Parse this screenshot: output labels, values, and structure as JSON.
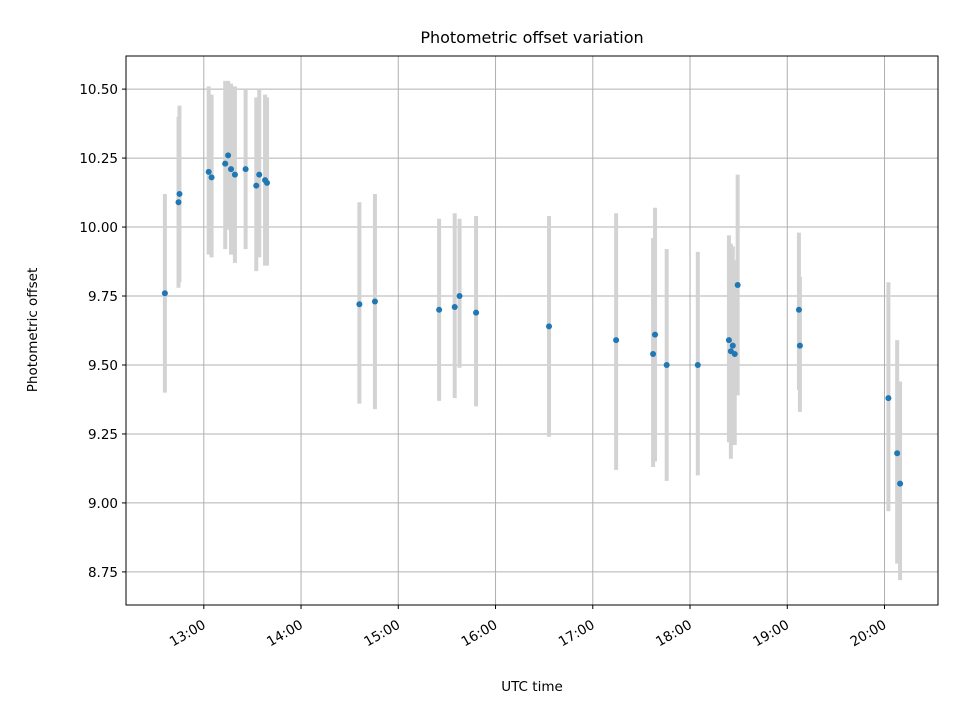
{
  "chart_data": {
    "type": "scatter",
    "title": "Photometric offset variation",
    "xlabel": "UTC time",
    "ylabel": "Photometric offset",
    "x_unit": "UTC time of day (hours)",
    "xlim": [
      12.2,
      20.55
    ],
    "ylim": [
      8.63,
      10.62
    ],
    "grid": true,
    "xticks": [
      {
        "value": 13,
        "label": "13:00"
      },
      {
        "value": 14,
        "label": "14:00"
      },
      {
        "value": 15,
        "label": "15:00"
      },
      {
        "value": 16,
        "label": "16:00"
      },
      {
        "value": 17,
        "label": "17:00"
      },
      {
        "value": 18,
        "label": "18:00"
      },
      {
        "value": 19,
        "label": "19:00"
      },
      {
        "value": 20,
        "label": "20:00"
      }
    ],
    "yticks": [
      {
        "value": 8.75,
        "label": "8.75"
      },
      {
        "value": 9.0,
        "label": "9.00"
      },
      {
        "value": 9.25,
        "label": "9.25"
      },
      {
        "value": 9.5,
        "label": "9.50"
      },
      {
        "value": 9.75,
        "label": "9.75"
      },
      {
        "value": 10.0,
        "label": "10.00"
      },
      {
        "value": 10.25,
        "label": "10.25"
      },
      {
        "value": 10.5,
        "label": "10.50"
      }
    ],
    "marker_color": "#1f77b4",
    "errorbar_color": "#d3d3d3",
    "points": [
      {
        "x": 12.6,
        "y": 9.76,
        "ylo": 9.4,
        "yhi": 10.12
      },
      {
        "x": 12.74,
        "y": 10.09,
        "ylo": 9.78,
        "yhi": 10.4
      },
      {
        "x": 12.75,
        "y": 10.12,
        "ylo": 9.8,
        "yhi": 10.44
      },
      {
        "x": 13.05,
        "y": 10.2,
        "ylo": 9.9,
        "yhi": 10.51
      },
      {
        "x": 13.08,
        "y": 10.18,
        "ylo": 9.89,
        "yhi": 10.48
      },
      {
        "x": 13.22,
        "y": 10.23,
        "ylo": 9.92,
        "yhi": 10.53
      },
      {
        "x": 13.25,
        "y": 10.26,
        "ylo": 9.99,
        "yhi": 10.53
      },
      {
        "x": 13.28,
        "y": 10.21,
        "ylo": 9.9,
        "yhi": 10.52
      },
      {
        "x": 13.32,
        "y": 10.19,
        "ylo": 9.87,
        "yhi": 10.51
      },
      {
        "x": 13.43,
        "y": 10.21,
        "ylo": 9.92,
        "yhi": 10.5
      },
      {
        "x": 13.54,
        "y": 10.15,
        "ylo": 9.84,
        "yhi": 10.47
      },
      {
        "x": 13.57,
        "y": 10.19,
        "ylo": 9.89,
        "yhi": 10.5
      },
      {
        "x": 13.63,
        "y": 10.17,
        "ylo": 9.86,
        "yhi": 10.48
      },
      {
        "x": 13.65,
        "y": 10.16,
        "ylo": 9.86,
        "yhi": 10.47
      },
      {
        "x": 14.6,
        "y": 9.72,
        "ylo": 9.36,
        "yhi": 10.09
      },
      {
        "x": 14.76,
        "y": 9.73,
        "ylo": 9.34,
        "yhi": 10.12
      },
      {
        "x": 15.42,
        "y": 9.7,
        "ylo": 9.37,
        "yhi": 10.03
      },
      {
        "x": 15.58,
        "y": 9.71,
        "ylo": 9.38,
        "yhi": 10.05
      },
      {
        "x": 15.63,
        "y": 9.75,
        "ylo": 9.49,
        "yhi": 10.03
      },
      {
        "x": 15.8,
        "y": 9.69,
        "ylo": 9.35,
        "yhi": 10.04
      },
      {
        "x": 16.55,
        "y": 9.64,
        "ylo": 9.24,
        "yhi": 10.04
      },
      {
        "x": 17.24,
        "y": 9.59,
        "ylo": 9.12,
        "yhi": 10.05
      },
      {
        "x": 17.62,
        "y": 9.54,
        "ylo": 9.13,
        "yhi": 9.96
      },
      {
        "x": 17.64,
        "y": 9.61,
        "ylo": 9.15,
        "yhi": 10.07
      },
      {
        "x": 17.76,
        "y": 9.5,
        "ylo": 9.08,
        "yhi": 9.92
      },
      {
        "x": 18.08,
        "y": 9.5,
        "ylo": 9.1,
        "yhi": 9.91
      },
      {
        "x": 18.4,
        "y": 9.59,
        "ylo": 9.22,
        "yhi": 9.97
      },
      {
        "x": 18.42,
        "y": 9.55,
        "ylo": 9.16,
        "yhi": 9.94
      },
      {
        "x": 18.44,
        "y": 9.57,
        "ylo": 9.21,
        "yhi": 9.93
      },
      {
        "x": 18.46,
        "y": 9.54,
        "ylo": 9.21,
        "yhi": 9.88
      },
      {
        "x": 18.49,
        "y": 9.79,
        "ylo": 9.39,
        "yhi": 10.19
      },
      {
        "x": 19.12,
        "y": 9.7,
        "ylo": 9.41,
        "yhi": 9.98
      },
      {
        "x": 19.13,
        "y": 9.57,
        "ylo": 9.33,
        "yhi": 9.82
      },
      {
        "x": 20.04,
        "y": 9.38,
        "ylo": 8.97,
        "yhi": 9.8
      },
      {
        "x": 20.13,
        "y": 9.18,
        "ylo": 8.78,
        "yhi": 9.59
      },
      {
        "x": 20.16,
        "y": 9.07,
        "ylo": 8.72,
        "yhi": 9.44
      }
    ]
  }
}
